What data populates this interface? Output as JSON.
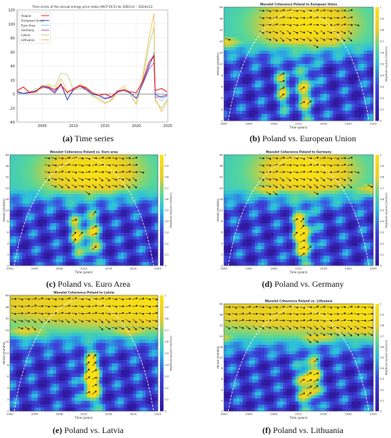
{
  "captions": [
    {
      "letter": "(a)",
      "text": "Time series"
    },
    {
      "letter": "(b)",
      "text": "Poland vs. European Union"
    },
    {
      "letter": "(c)",
      "text": "Poland vs. Euro Area"
    },
    {
      "letter": "(d)",
      "text": "Poland vs. Germany"
    },
    {
      "letter": "(e)",
      "text": "Poland vs. Latvia"
    },
    {
      "letter": "(f)",
      "text": "Poland vs. Lithuania"
    }
  ],
  "colors": {
    "Poland": "#e8101a",
    "European Union": "#1f3fbf",
    "Euro Area": "#7fc3e8",
    "Germany": "#c040c0",
    "Latvia": "#a6d26a",
    "Lithuania": "#f5b23a",
    "coh_low": "#2a1fb0",
    "coh_mid": "#27c3e0",
    "coh_high": "#f5d21a",
    "arrow": "#111111",
    "coi": "#ffffff"
  },
  "chart_data": [
    {
      "type": "line",
      "title": "Time series of the annual energy price index (HICP 04.5) for 2001m1 – 2024m12",
      "x": [
        2001,
        2002,
        2003,
        2004,
        2005,
        2006,
        2007,
        2008,
        2009,
        2010,
        2011,
        2012,
        2013,
        2014,
        2015,
        2016,
        2017,
        2018,
        2019,
        2020,
        2021,
        2022,
        2022.8,
        2023,
        2024,
        2024.9
      ],
      "xticks": [
        "2005",
        "2010",
        "2015",
        "2020",
        "2025"
      ],
      "xtick_values": [
        2005,
        2010,
        2015,
        2020,
        2025
      ],
      "yticks": [
        "-40",
        "-20",
        "0",
        "20",
        "40",
        "60",
        "80",
        "100",
        "120"
      ],
      "ylim": [
        -40,
        120
      ],
      "xlim": [
        2001,
        2025
      ],
      "legend_position": "top-left",
      "grid": true,
      "series": [
        {
          "name": "Poland",
          "values": [
            5,
            10,
            2,
            3,
            12,
            10,
            6,
            13,
            2,
            8,
            12,
            9,
            2,
            -2,
            0,
            -4,
            4,
            6,
            3,
            2,
            18,
            45,
            55,
            5,
            8,
            3
          ]
        },
        {
          "name": "European Union",
          "values": [
            3,
            1,
            2,
            5,
            10,
            9,
            3,
            15,
            -8,
            8,
            12,
            7,
            0,
            -2,
            -6,
            -4,
            3,
            6,
            2,
            -6,
            15,
            40,
            55,
            0,
            -5,
            -2
          ]
        },
        {
          "name": "Euro Area",
          "values": [
            2,
            0,
            2,
            4,
            10,
            8,
            2,
            14,
            -9,
            8,
            12,
            7,
            -1,
            -2,
            -7,
            -5,
            3,
            6,
            1,
            -7,
            15,
            37,
            60,
            -2,
            -10,
            -3
          ]
        },
        {
          "name": "Germany",
          "values": [
            4,
            1,
            3,
            4,
            10,
            8,
            1,
            13,
            -8,
            6,
            11,
            6,
            0,
            -2,
            -7,
            -5,
            3,
            5,
            2,
            -6,
            14,
            35,
            45,
            -5,
            -3,
            -1
          ]
        },
        {
          "name": "Latvia",
          "values": [
            2,
            1,
            3,
            8,
            9,
            14,
            10,
            30,
            28,
            5,
            8,
            6,
            -3,
            -5,
            -12,
            -10,
            2,
            8,
            0,
            -15,
            20,
            68,
            95,
            -10,
            -20,
            -8
          ]
        },
        {
          "name": "Lithuania",
          "values": [
            3,
            1,
            2,
            5,
            8,
            12,
            6,
            22,
            4,
            6,
            14,
            10,
            -2,
            -8,
            -14,
            -8,
            4,
            12,
            0,
            -14,
            25,
            80,
            115,
            -5,
            -25,
            -10
          ]
        }
      ]
    },
    {
      "type": "heatmap",
      "title": "Wavelet Coherence Poland to European Union",
      "xlabel": "Time (years)",
      "ylabel": "Period (months)",
      "colorbar_label": "Magnitude-Squared Coherence",
      "xticks": [
        "2000",
        "2004",
        "2008",
        "2012",
        "2016",
        "2020",
        "2024"
      ],
      "yticks": [
        "64",
        "48",
        "32",
        "24",
        "16",
        "12",
        "8",
        "6",
        "4",
        "3",
        "2"
      ],
      "cbar_ticks": [
        "1",
        "0.9",
        "0.8",
        "0.7",
        "0.6",
        "0.5",
        "0.4",
        "0.3",
        "0.2",
        "0.1",
        "0"
      ]
    },
    {
      "type": "heatmap",
      "title": "Wavelet Coherence Poland vs. Euro area",
      "xlabel": "Time (years)",
      "ylabel": "Period (months)",
      "colorbar_label": "Magnitude-Squared Coherence",
      "xticks": [
        "2000",
        "2004",
        "2008",
        "2012",
        "2016",
        "2020",
        "2024"
      ],
      "yticks": [
        "64",
        "48",
        "32",
        "24",
        "16",
        "12",
        "8",
        "6",
        "4",
        "3",
        "2"
      ],
      "cbar_ticks": [
        "1",
        "0.9",
        "0.8",
        "0.7",
        "0.6",
        "0.5",
        "0.4",
        "0.3",
        "0.2",
        "0.1",
        "0"
      ]
    },
    {
      "type": "heatmap",
      "title": "Wavelet Coherence Poland to Germany",
      "xlabel": "Time (years)",
      "ylabel": "Period (months)",
      "colorbar_label": "Magnitude-Squared Coherence",
      "xticks": [
        "2000",
        "2004",
        "2008",
        "2012",
        "2016",
        "2020",
        "2024"
      ],
      "yticks": [
        "64",
        "48",
        "32",
        "24",
        "16",
        "12",
        "8",
        "6",
        "4",
        "3",
        "2"
      ],
      "cbar_ticks": [
        "1",
        "0.9",
        "0.8",
        "0.7",
        "0.6",
        "0.5",
        "0.4",
        "0.3",
        "0.2",
        "0.1",
        "0"
      ]
    },
    {
      "type": "heatmap",
      "title": "Wavelet Coherence Poland to Latvia",
      "xlabel": "Time (years)",
      "ylabel": "Period (months)",
      "colorbar_label": "Magnitude-Squared Coherence",
      "xticks": [
        "2000",
        "2004",
        "2008",
        "2012",
        "2016",
        "2020",
        "2024"
      ],
      "yticks": [
        "64",
        "48",
        "32",
        "24",
        "16",
        "12",
        "8",
        "6",
        "4",
        "3",
        "2"
      ],
      "cbar_ticks": [
        "1",
        "0.9",
        "0.8",
        "0.7",
        "0.6",
        "0.5",
        "0.4",
        "0.3",
        "0.2",
        "0.1",
        "0"
      ]
    },
    {
      "type": "heatmap",
      "title": "Wavelet Coherence Poland vs. Lithuania",
      "xlabel": "Time (years)",
      "ylabel": "Period (months)",
      "colorbar_label": "Magnitude-Squared Coherence",
      "xticks": [
        "2000",
        "2004",
        "2008",
        "2012",
        "2016",
        "2020",
        "2024"
      ],
      "yticks": [
        "64",
        "48",
        "32",
        "24",
        "16",
        "12",
        "8",
        "6",
        "4",
        "3",
        "2"
      ],
      "cbar_ticks": [
        "1",
        "0.9",
        "0.8",
        "0.7",
        "0.6",
        "0.5",
        "0.4",
        "0.3",
        "0.2",
        "0.1",
        "0"
      ]
    }
  ]
}
